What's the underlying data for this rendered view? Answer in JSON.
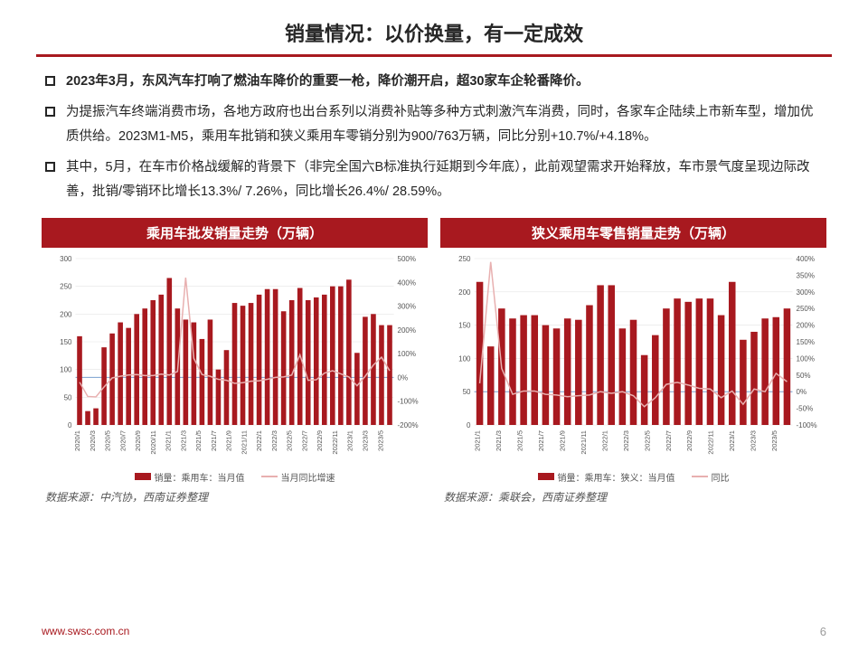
{
  "title": "销量情况：以价换量，有一定成效",
  "bullets": [
    {
      "bold": true,
      "text": "2023年3月，东风汽车打响了燃油车降价的重要一枪，降价潮开启，超30家车企轮番降价。"
    },
    {
      "bold": false,
      "text": "为提振汽车终端消费市场，各地方政府也出台系列以消费补贴等多种方式刺激汽车消费，同时，各家车企陆续上市新车型，增加优质供给。2023M1-M5，乘用车批销和狭义乘用车零销分别为900/763万辆，同比分别+10.7%/+4.18%。"
    },
    {
      "bold": false,
      "text": "其中，5月，在车市价格战缓解的背景下（非完全国六B标准执行延期到今年底），此前观望需求开始释放，车市景气度呈现边际改善，批销/零销环比增长13.3%/ 7.26%，同比增长26.4%/ 28.59%。"
    }
  ],
  "chart1": {
    "title": "乘用车批发销量走势（万辆）",
    "type": "bar+line",
    "left_axis": {
      "min": 0,
      "max": 300,
      "step": 50
    },
    "right_axis": {
      "min": -200,
      "max": 500,
      "step": 100
    },
    "x_labels": [
      "2020/1",
      "2020/3",
      "2020/5",
      "2020/7",
      "2020/9",
      "2020/11",
      "2021/1",
      "2021/3",
      "2021/5",
      "2021/7",
      "2021/9",
      "2021/11",
      "2022/1",
      "2022/3",
      "2022/5",
      "2022/7",
      "2022/9",
      "2022/11",
      "2023/1",
      "2023/3",
      "2023/5"
    ],
    "bars": [
      160,
      25,
      30,
      140,
      165,
      185,
      175,
      200,
      210,
      225,
      235,
      265,
      210,
      190,
      185,
      155,
      190,
      100,
      135,
      220,
      215,
      220,
      235,
      245,
      245,
      205,
      225,
      247,
      225,
      230,
      235,
      250,
      250,
      262,
      130,
      195,
      200,
      180,
      180
    ],
    "line": [
      -20,
      -80,
      -82,
      -40,
      -2,
      5,
      10,
      12,
      8,
      8,
      14,
      10,
      25,
      420,
      80,
      12,
      5,
      -8,
      -12,
      -25,
      -22,
      -16,
      -14,
      -8,
      0,
      2,
      10,
      95,
      -12,
      -10,
      18,
      28,
      15,
      2,
      -35,
      5,
      52,
      85,
      28
    ],
    "bar_color": "#a8191f",
    "line_color": "#e8b0b0",
    "grid_color": "#e4e4e4",
    "zero_color": "#7aa0d0",
    "legend_bar": "销量：乘用车：当月值",
    "legend_line": "当月同比增速",
    "source": "数据来源：中汽协，西南证券整理"
  },
  "chart2": {
    "title": "狭义乘用车零售销量走势（万辆）",
    "type": "bar+line",
    "left_axis": {
      "min": 0,
      "max": 250,
      "step": 50
    },
    "right_axis": {
      "min": -100,
      "max": 400,
      "step": 50
    },
    "x_labels": [
      "2021/1",
      "2021/3",
      "2021/5",
      "2021/7",
      "2021/9",
      "2021/11",
      "2022/1",
      "2022/3",
      "2022/5",
      "2022/7",
      "2022/9",
      "2022/11",
      "2023/1",
      "2023/3",
      "2023/5"
    ],
    "bars": [
      215,
      118,
      175,
      160,
      165,
      165,
      150,
      145,
      160,
      158,
      180,
      210,
      210,
      145,
      158,
      105,
      135,
      175,
      190,
      185,
      190,
      190,
      165,
      215,
      128,
      140,
      160,
      162,
      175
    ],
    "line": [
      25,
      390,
      70,
      -8,
      2,
      2,
      -8,
      -10,
      -15,
      -12,
      -10,
      0,
      -5,
      0,
      -12,
      -45,
      -18,
      22,
      28,
      20,
      10,
      8,
      -18,
      2,
      -38,
      8,
      0,
      55,
      30
    ],
    "bar_color": "#a8191f",
    "line_color": "#e8b0b0",
    "grid_color": "#e4e4e4",
    "zero_color": "#7aa0d0",
    "legend_bar": "销量：乘用车：狭义：当月值",
    "legend_line": "同比",
    "source": "数据来源：乘联会，西南证券整理"
  },
  "footer": {
    "url": "www.swsc.com.cn",
    "page": "6"
  }
}
